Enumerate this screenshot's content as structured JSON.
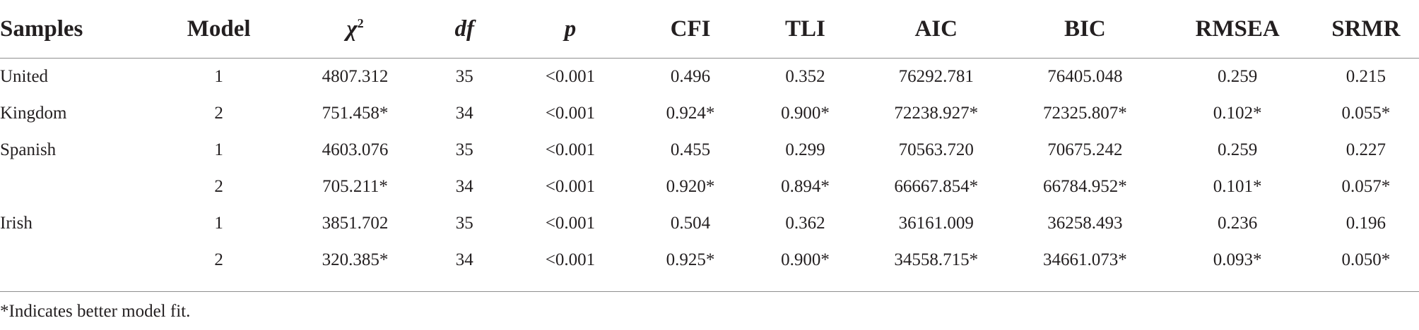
{
  "table": {
    "headers": {
      "samples": "Samples",
      "model": "Model",
      "chi": "χ",
      "chi_sup": "2",
      "df": "df",
      "p": "p",
      "cfi": "CFI",
      "tli": "TLI",
      "aic": "AIC",
      "bic": "BIC",
      "rmsea": "RMSEA",
      "srmr": "SRMR"
    },
    "rows": [
      {
        "sample": "United",
        "model": "1",
        "chi2": "4807.312",
        "df": "35",
        "p": "<0.001",
        "cfi": "0.496",
        "tli": "0.352",
        "aic": "76292.781",
        "bic": "76405.048",
        "rmsea": "0.259",
        "srmr": "0.215"
      },
      {
        "sample": "Kingdom",
        "model": "2",
        "chi2": "751.458*",
        "df": "34",
        "p": "<0.001",
        "cfi": "0.924*",
        "tli": "0.900*",
        "aic": "72238.927*",
        "bic": "72325.807*",
        "rmsea": "0.102*",
        "srmr": "0.055*"
      },
      {
        "sample": "Spanish",
        "model": "1",
        "chi2": "4603.076",
        "df": "35",
        "p": "<0.001",
        "cfi": "0.455",
        "tli": "0.299",
        "aic": "70563.720",
        "bic": "70675.242",
        "rmsea": "0.259",
        "srmr": "0.227"
      },
      {
        "sample": "",
        "model": "2",
        "chi2": "705.211*",
        "df": "34",
        "p": "<0.001",
        "cfi": "0.920*",
        "tli": "0.894*",
        "aic": "66667.854*",
        "bic": "66784.952*",
        "rmsea": "0.101*",
        "srmr": "0.057*"
      },
      {
        "sample": "Irish",
        "model": "1",
        "chi2": "3851.702",
        "df": "35",
        "p": "<0.001",
        "cfi": "0.504",
        "tli": "0.362",
        "aic": "36161.009",
        "bic": "36258.493",
        "rmsea": "0.236",
        "srmr": "0.196"
      },
      {
        "sample": "",
        "model": "2",
        "chi2": "320.385*",
        "df": "34",
        "p": "<0.001",
        "cfi": "0.925*",
        "tli": "0.900*",
        "aic": "34558.715*",
        "bic": "34661.073*",
        "rmsea": "0.093*",
        "srmr": "0.050*"
      }
    ]
  },
  "footnote": "*Indicates better model fit."
}
